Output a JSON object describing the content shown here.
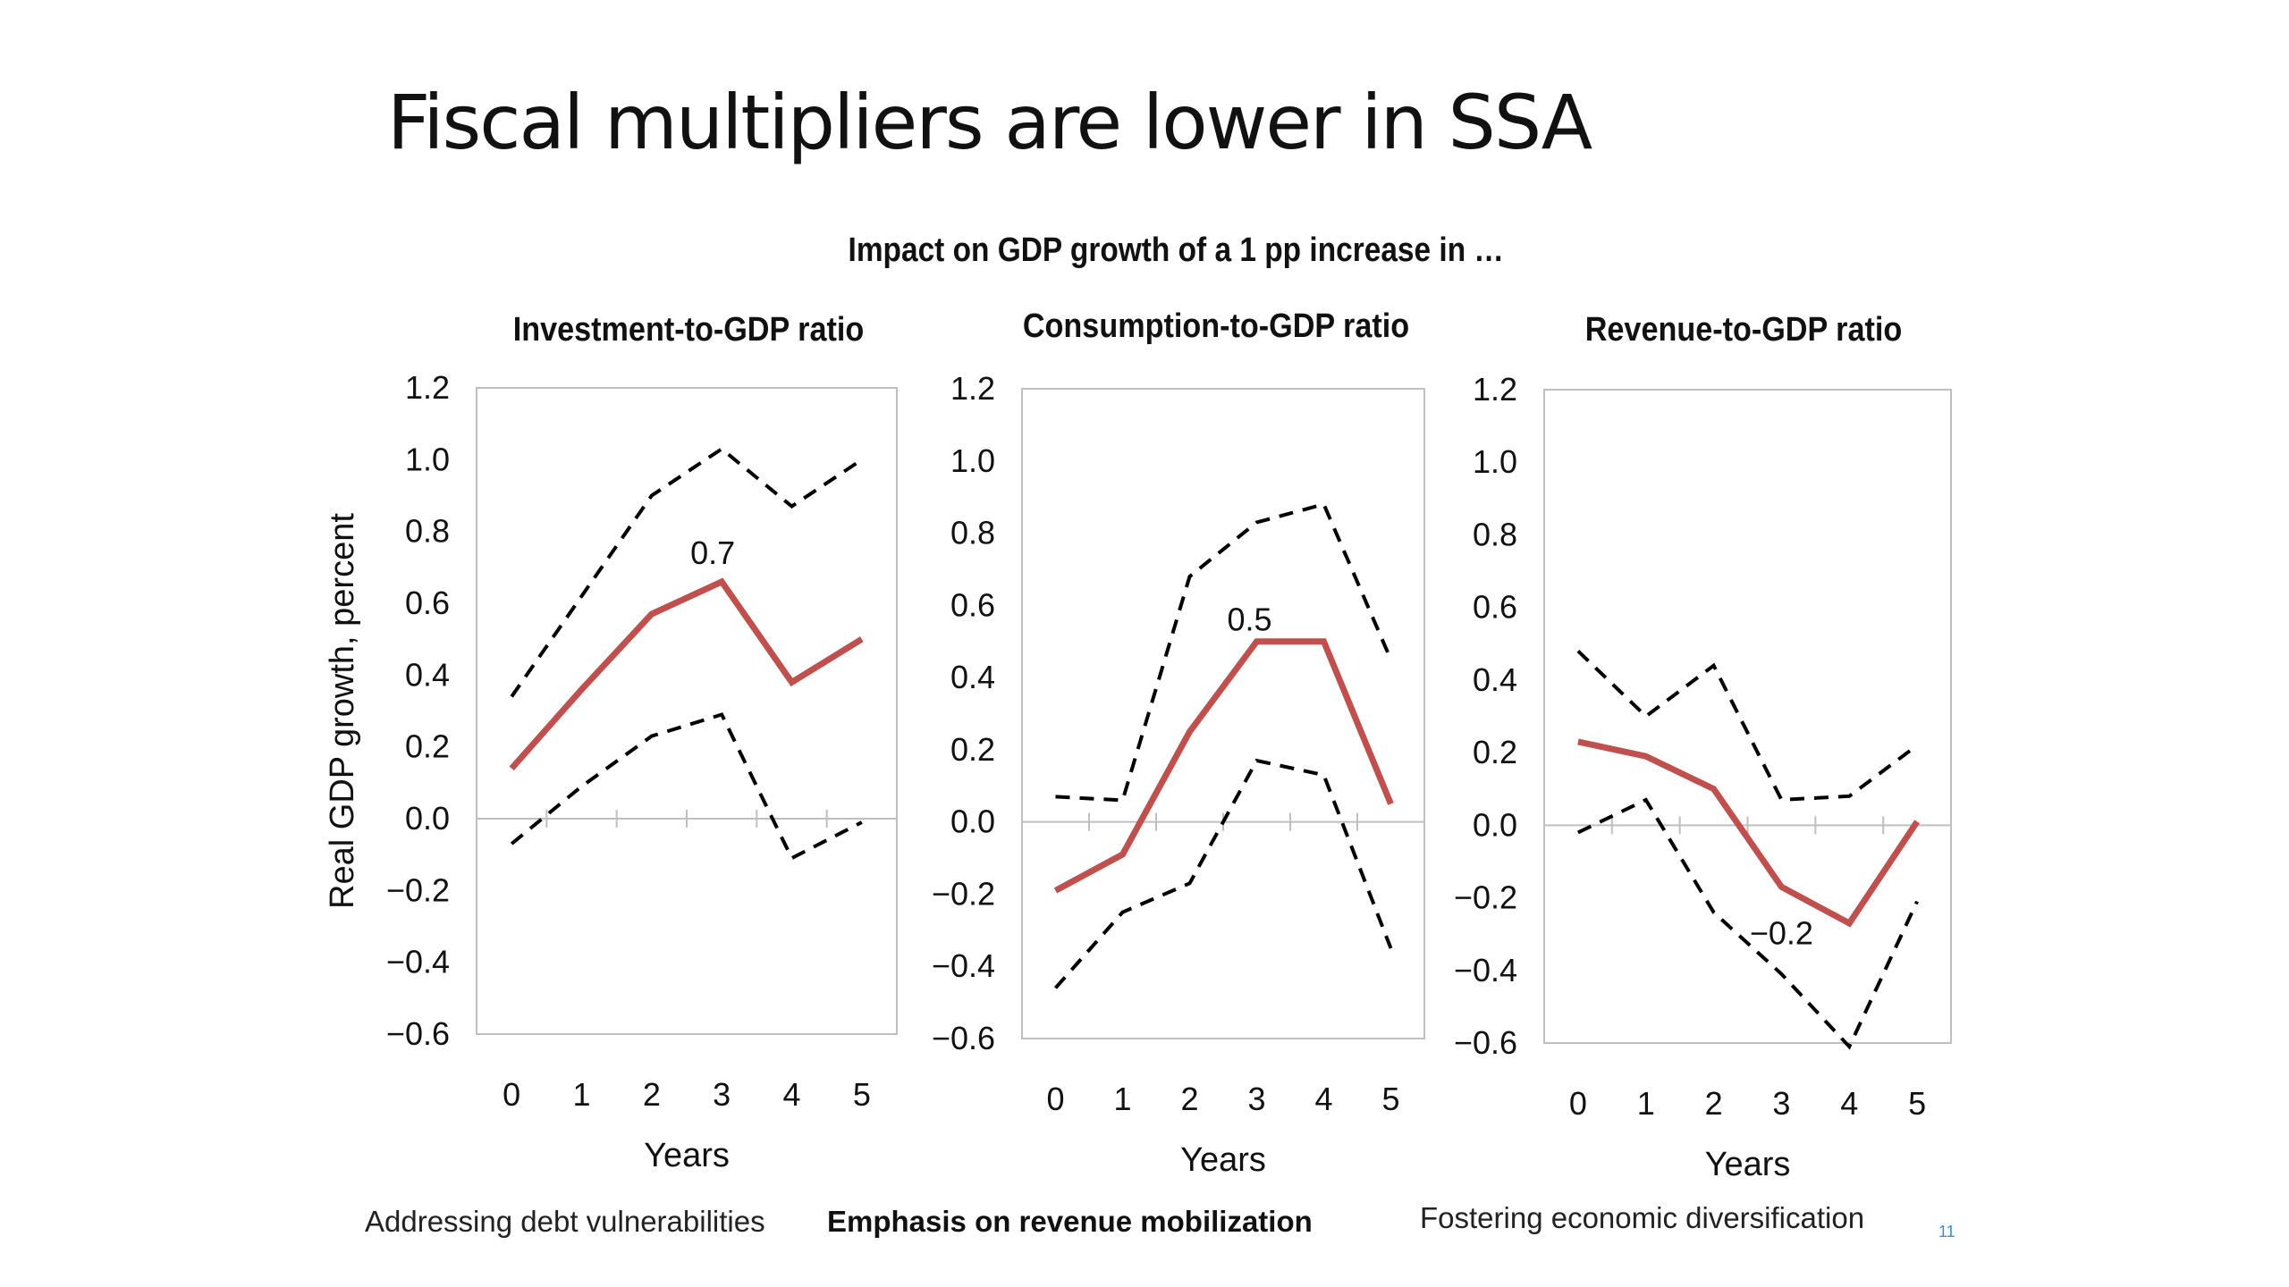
{
  "slide": {
    "title": "Fiscal multipliers are lower in SSA",
    "page_number": "11"
  },
  "footer": {
    "left": "Addressing debt vulnerabilities",
    "center": "Emphasis on revenue mobilization",
    "right": "Fostering economic diversification"
  },
  "colors": {
    "estimate": "#c0504d",
    "bands": "#000000",
    "frame": "#bfbfbf"
  },
  "chart_data": [
    {
      "type": "line",
      "suptitle": "Impact on GDP growth of a 1 pp increase in …",
      "title": "Investment-to-GDP ratio",
      "xlabel": "Years",
      "ylabel": "Real GDP growth, percent",
      "x": [
        0,
        1,
        2,
        3,
        4,
        5
      ],
      "ylim": [
        -0.6,
        1.2
      ],
      "yticks": [
        "1.2",
        "1.0",
        "0.8",
        "0.6",
        "0.4",
        "0.2",
        "0.0",
        "−0.2",
        "−0.4",
        "−0.6"
      ],
      "series": [
        {
          "style": "solid",
          "values": [
            0.14,
            0.36,
            0.57,
            0.66,
            0.38,
            0.5
          ]
        },
        {
          "style": "dashed",
          "values": [
            0.34,
            0.62,
            0.9,
            1.03,
            0.87,
            1.0
          ]
        },
        {
          "style": "dashed",
          "values": [
            -0.07,
            0.09,
            0.23,
            0.29,
            -0.11,
            -0.01
          ]
        }
      ],
      "annotations": [
        {
          "text": "0.7",
          "x": 3,
          "y": 0.66
        }
      ]
    },
    {
      "type": "line",
      "title": "Consumption-to-GDP ratio",
      "xlabel": "Years",
      "x": [
        0,
        1,
        2,
        3,
        4,
        5
      ],
      "ylim": [
        -0.6,
        1.2
      ],
      "yticks": [
        "1.2",
        "1.0",
        "0.8",
        "0.6",
        "0.4",
        "0.2",
        "0.0",
        "−0.2",
        "−0.4",
        "−0.6"
      ],
      "series": [
        {
          "style": "solid",
          "values": [
            -0.19,
            -0.09,
            0.25,
            0.5,
            0.5,
            0.05
          ]
        },
        {
          "style": "dashed",
          "values": [
            0.07,
            0.06,
            0.68,
            0.83,
            0.88,
            0.45
          ]
        },
        {
          "style": "dashed",
          "values": [
            -0.46,
            -0.25,
            -0.17,
            0.17,
            0.13,
            -0.35
          ]
        }
      ],
      "annotations": [
        {
          "text": "0.5",
          "x": 3,
          "y": 0.5
        }
      ]
    },
    {
      "type": "line",
      "title": "Revenue-to-GDP ratio",
      "xlabel": "Years",
      "x": [
        0,
        1,
        2,
        3,
        4,
        5
      ],
      "ylim": [
        -0.6,
        1.2
      ],
      "yticks": [
        "1.2",
        "1.0",
        "0.8",
        "0.6",
        "0.4",
        "0.2",
        "0.0",
        "−0.2",
        "−0.4",
        "−0.6"
      ],
      "series": [
        {
          "style": "solid",
          "values": [
            0.23,
            0.19,
            0.1,
            -0.17,
            -0.27,
            0.01
          ]
        },
        {
          "style": "dashed",
          "values": [
            0.48,
            0.3,
            0.44,
            0.07,
            0.08,
            0.22
          ]
        },
        {
          "style": "dashed",
          "values": [
            -0.02,
            0.07,
            -0.24,
            -0.41,
            -0.61,
            -0.21
          ]
        }
      ],
      "annotations": [
        {
          "text": "−0.2",
          "x": 3,
          "y": -0.17
        }
      ]
    }
  ]
}
